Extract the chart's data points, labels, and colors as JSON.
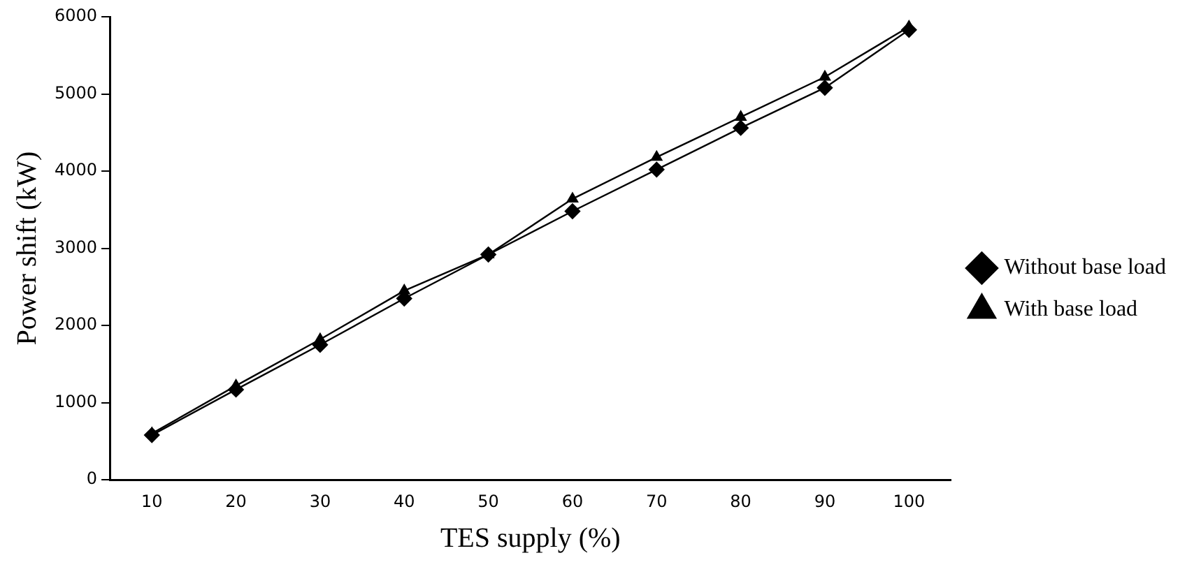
{
  "chart_data": {
    "type": "line",
    "xlabel": "TES supply (%)",
    "ylabel": "Power shift (kW)",
    "categories": [
      "10",
      "20",
      "30",
      "40",
      "50",
      "60",
      "70",
      "80",
      "90",
      "100"
    ],
    "series": [
      {
        "name": "Without base load",
        "color": "#000000",
        "marker": "diamond",
        "values": [
          580,
          1170,
          1750,
          2350,
          2920,
          3480,
          4020,
          4560,
          5080,
          5830
        ]
      },
      {
        "name": "With base load",
        "color": "#000000",
        "marker": "triangle",
        "values": [
          600,
          1220,
          1820,
          2450,
          2920,
          3640,
          4180,
          4700,
          5220,
          5870
        ]
      }
    ],
    "ylim": [
      0,
      6000
    ],
    "yticks": [
      0,
      1000,
      2000,
      3000,
      4000,
      5000,
      6000
    ],
    "grid": false,
    "legend": "right",
    "line_style": "solid"
  }
}
